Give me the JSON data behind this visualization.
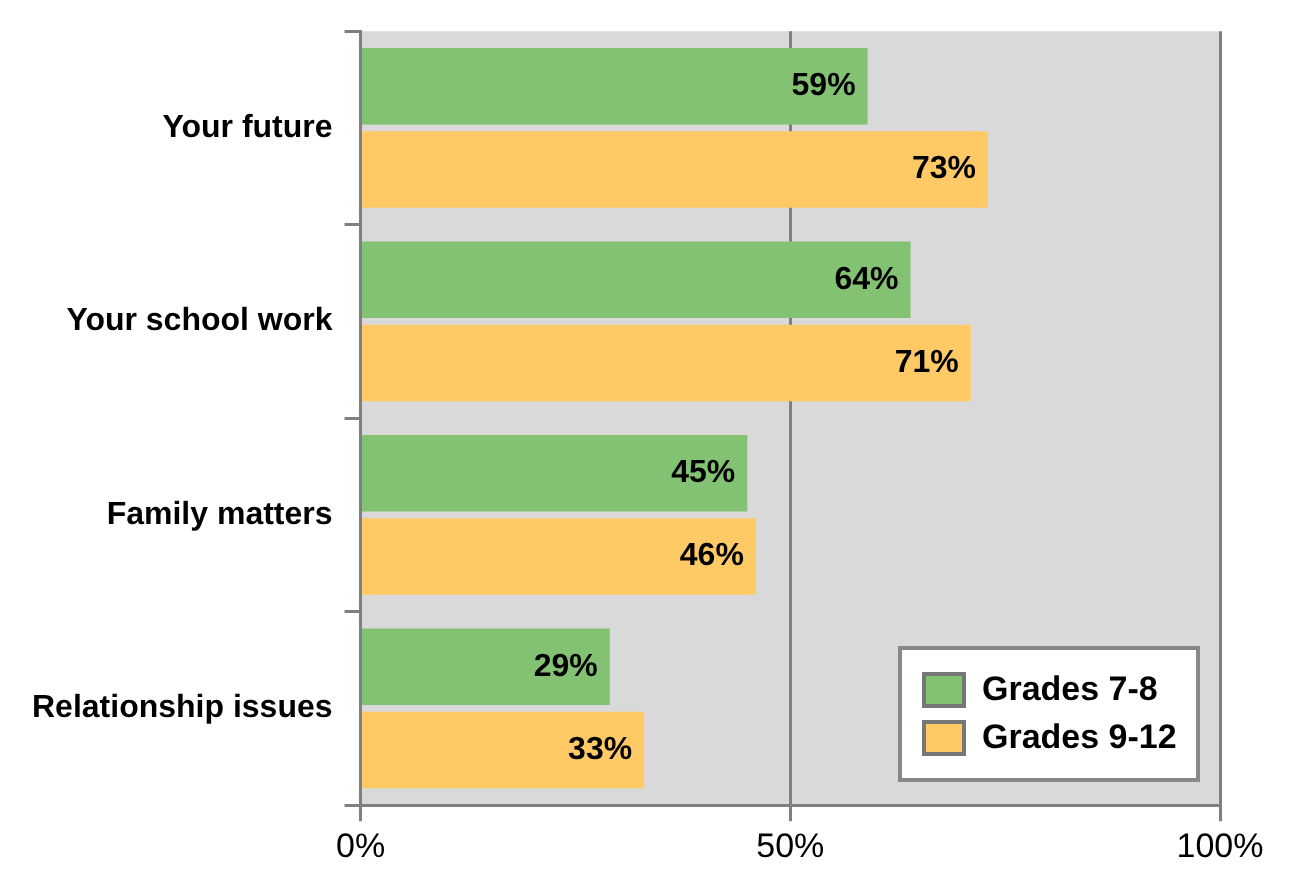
{
  "chart_data": {
    "type": "bar",
    "orientation": "horizontal",
    "categories": [
      "Your future",
      "Your school work",
      "Family matters",
      "Relationship issues"
    ],
    "series": [
      {
        "name": "Grades 7-8",
        "color": "#82c272",
        "values": [
          59,
          64,
          45,
          29
        ],
        "value_labels": [
          "59%",
          "64%",
          "45%",
          "29%"
        ]
      },
      {
        "name": "Grades 9-12",
        "color": "#ffca66",
        "values": [
          73,
          71,
          46,
          33
        ],
        "value_labels": [
          "73%",
          "71%",
          "46%",
          "33%"
        ]
      }
    ],
    "xlim": [
      0,
      100
    ],
    "xticks": [
      {
        "value": 0,
        "label": "0%"
      },
      {
        "value": 50,
        "label": "50%"
      },
      {
        "value": 100,
        "label": "100%"
      }
    ],
    "grid": "x",
    "legend": "bottom right"
  }
}
